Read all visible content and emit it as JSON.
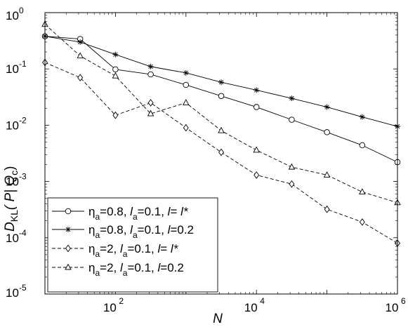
{
  "chart_data": {
    "type": "line",
    "x_scale": "log",
    "y_scale": "log",
    "xlim": [
      10,
      1000000
    ],
    "ylim": [
      1e-05,
      1
    ],
    "x_ticks": [
      {
        "value": 100,
        "base": "10",
        "exp": "2"
      },
      {
        "value": 10000,
        "base": "10",
        "exp": "4"
      },
      {
        "value": 1000000,
        "base": "10",
        "exp": "6"
      }
    ],
    "y_ticks": [
      {
        "value": 1,
        "base": "10",
        "exp": "0"
      },
      {
        "value": 0.1,
        "base": "10",
        "exp": "-1"
      },
      {
        "value": 0.01,
        "base": "10",
        "exp": "-2"
      },
      {
        "value": 0.001,
        "base": "10",
        "exp": "-3"
      },
      {
        "value": 0.0001,
        "base": "10",
        "exp": "-4"
      },
      {
        "value": 1e-05,
        "base": "10",
        "exp": "-5"
      }
    ],
    "xlabel": "N",
    "ylabel": {
      "main": "D",
      "sub": "KL",
      "paren": "( P| Q",
      "sub2": "c",
      "close": ")"
    },
    "legend_position": "bottom-left",
    "grid": false,
    "series": [
      {
        "label": [
          {
            "t": "η"
          },
          {
            "t": "a",
            "sub": true
          },
          {
            "t": "=0.8,  "
          },
          {
            "t": "l",
            "italic": true
          },
          {
            "t": "a",
            "sub": true
          },
          {
            "t": "=0.1,  "
          },
          {
            "t": "l",
            "italic": true
          },
          {
            "t": "= "
          },
          {
            "t": "l*",
            "italic": true
          }
        ],
        "marker": "circle",
        "dash": "solid",
        "color": "#000000",
        "x": [
          10,
          31.6,
          100,
          316,
          1000,
          3162,
          10000,
          31623,
          100000,
          316228,
          1000000
        ],
        "y": [
          0.38,
          0.34,
          0.098,
          0.08,
          0.052,
          0.033,
          0.021,
          0.0125,
          0.0075,
          0.0044,
          0.0022
        ]
      },
      {
        "label": [
          {
            "t": "η"
          },
          {
            "t": "a",
            "sub": true
          },
          {
            "t": "=0.8,  "
          },
          {
            "t": "l",
            "italic": true
          },
          {
            "t": "a",
            "sub": true
          },
          {
            "t": "=0.1,  "
          },
          {
            "t": "l",
            "italic": true
          },
          {
            "t": "=0.2"
          }
        ],
        "marker": "star",
        "dash": "solid",
        "color": "#000000",
        "x": [
          10,
          31.6,
          100,
          316,
          1000,
          3162,
          10000,
          31623,
          100000,
          316228,
          1000000
        ],
        "y": [
          0.38,
          0.3,
          0.18,
          0.11,
          0.085,
          0.058,
          0.042,
          0.03,
          0.021,
          0.014,
          0.0095
        ]
      },
      {
        "label": [
          {
            "t": "η"
          },
          {
            "t": "a",
            "sub": true
          },
          {
            "t": "=2,  "
          },
          {
            "t": "l",
            "italic": true
          },
          {
            "t": "a",
            "sub": true
          },
          {
            "t": "=0.1,  "
          },
          {
            "t": "l",
            "italic": true
          },
          {
            "t": "= "
          },
          {
            "t": "l*",
            "italic": true
          }
        ],
        "marker": "diamond",
        "dash": "dashed",
        "color": "#000000",
        "x": [
          10,
          31.6,
          100,
          316,
          1000,
          3162,
          10000,
          31623,
          100000,
          316228,
          1000000
        ],
        "y": [
          0.13,
          0.07,
          0.015,
          0.025,
          0.009,
          0.0033,
          0.0013,
          0.0009,
          0.00032,
          0.00019,
          8e-05
        ]
      },
      {
        "label": [
          {
            "t": "η"
          },
          {
            "t": "a",
            "sub": true
          },
          {
            "t": "=2,  "
          },
          {
            "t": "l",
            "italic": true
          },
          {
            "t": "a",
            "sub": true
          },
          {
            "t": "=0.1,  "
          },
          {
            "t": "l",
            "italic": true
          },
          {
            "t": "=0.2"
          }
        ],
        "marker": "triangle",
        "dash": "dashed",
        "color": "#000000",
        "x": [
          10,
          31.6,
          100,
          316,
          1000,
          3162,
          10000,
          31623,
          100000,
          316228,
          1000000
        ],
        "y": [
          0.62,
          0.17,
          0.075,
          0.016,
          0.025,
          0.008,
          0.0036,
          0.0018,
          0.0013,
          0.00065,
          0.00042
        ]
      }
    ]
  }
}
